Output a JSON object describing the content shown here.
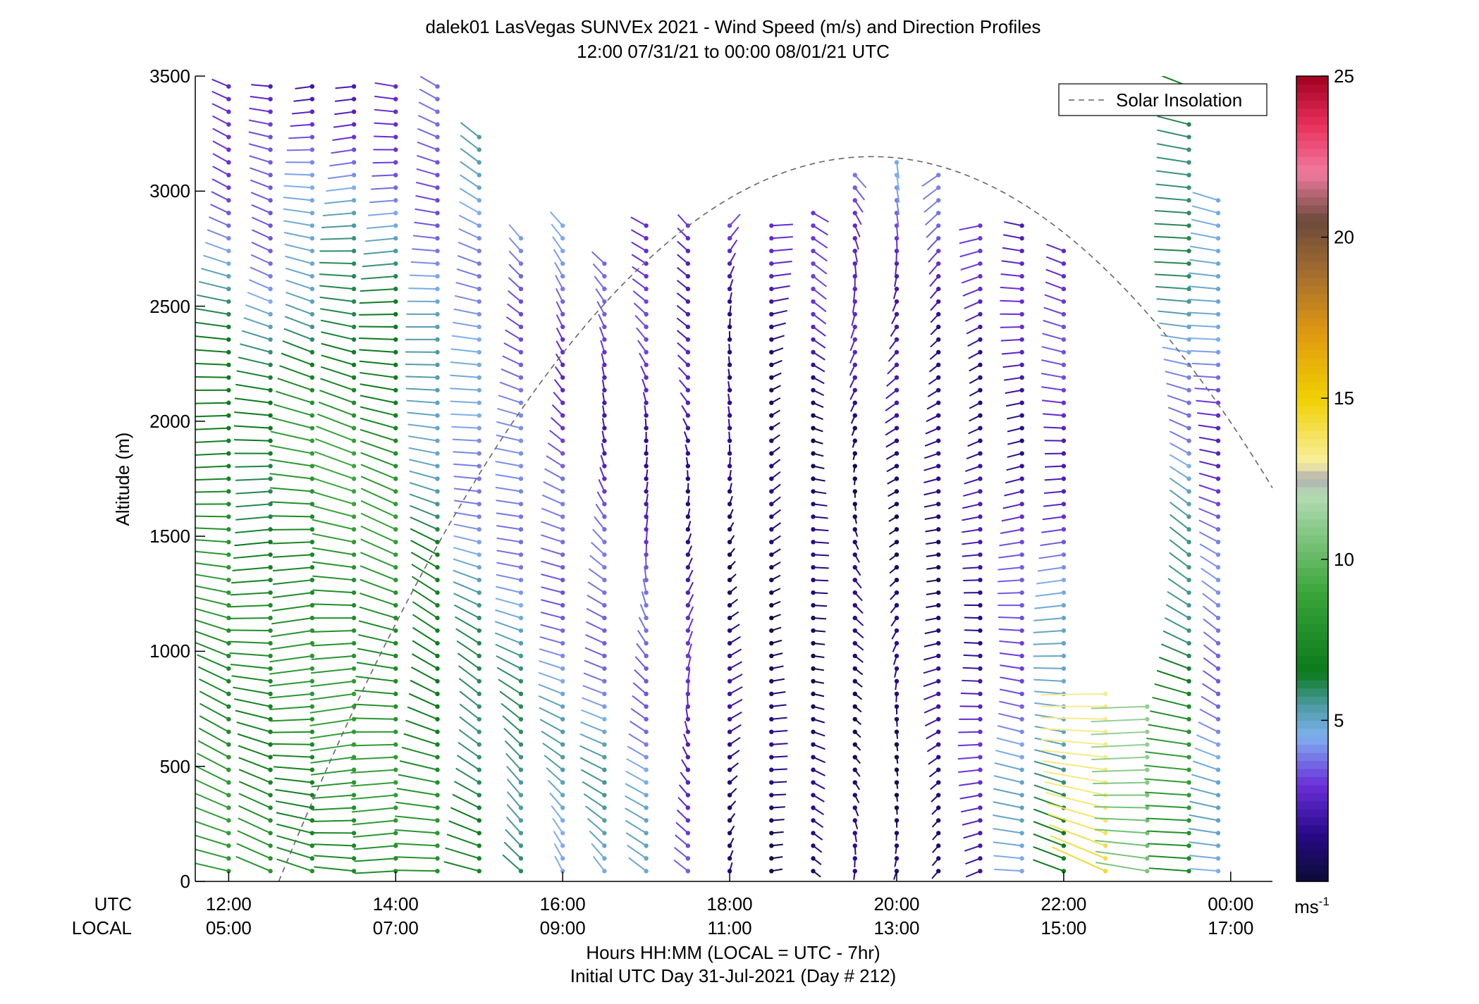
{
  "chart_data": {
    "type": "scatter",
    "plot_style": "wind barb profiles (stick vectors) colored by speed",
    "title": "dalek01 LasVegas SUNVEx 2021 - Wind Speed (m/s) and Direction Profiles",
    "subtitle": "12:00 07/31/21 to 00:00 08/01/21  UTC",
    "ylabel": "Altitude (m)",
    "ylim": [
      0,
      3500
    ],
    "yticks": [
      0,
      500,
      1000,
      1500,
      2000,
      2500,
      3000,
      3500
    ],
    "ytick_labels": [
      "0",
      "500",
      "1000",
      "1500",
      "2000",
      "2500",
      "3000",
      "3500"
    ],
    "xlim_utc_hours": [
      11.6,
      24.5
    ],
    "utc_row_label": "UTC",
    "local_row_label": "LOCAL",
    "xticks_utc": [
      "12:00",
      "14:00",
      "16:00",
      "18:00",
      "20:00",
      "22:00",
      "00:00"
    ],
    "xticks_local": [
      "05:00",
      "07:00",
      "09:00",
      "11:00",
      "13:00",
      "15:00",
      "17:00"
    ],
    "xtick_hours_utc": [
      12,
      14,
      16,
      18,
      20,
      22,
      24
    ],
    "xlabel": "Hours HH:MM  (LOCAL = UTC - 7hr)",
    "xlabel2": "Initial UTC Day 31-Jul-2021 (Day # 212)",
    "legend": {
      "label": "Solar Insolation",
      "placement": "top-right",
      "style": "dashed gray line"
    },
    "solar_insolation_curve": {
      "peak_hour_utc": 19.7,
      "peak_altitude": 3150,
      "zero_hour_utc": 12.6,
      "end_hour_utc": 24.5,
      "end_altitude": 1500
    },
    "colorbar": {
      "range": [
        0,
        25
      ],
      "ticks": [
        5,
        10,
        15,
        20,
        25
      ],
      "tick_labels": [
        "5",
        "10",
        "15",
        "20",
        "25"
      ],
      "unit_label": "ms",
      "unit_exponent": "-1",
      "stops": [
        {
          "value": 0,
          "color": "#0b0b35"
        },
        {
          "value": 1.5,
          "color": "#2a0a8a"
        },
        {
          "value": 3,
          "color": "#6a2fd8"
        },
        {
          "value": 4.5,
          "color": "#7fb0f0"
        },
        {
          "value": 5.5,
          "color": "#4a9aa0"
        },
        {
          "value": 6.5,
          "color": "#0a7a1a"
        },
        {
          "value": 9,
          "color": "#3aa63a"
        },
        {
          "value": 12,
          "color": "#b4dcb4"
        },
        {
          "value": 12.5,
          "color": "#b0b0b0"
        },
        {
          "value": 13,
          "color": "#f8f0a0"
        },
        {
          "value": 15,
          "color": "#f0d000"
        },
        {
          "value": 17,
          "color": "#e09a10"
        },
        {
          "value": 19,
          "color": "#a06a30"
        },
        {
          "value": 20.5,
          "color": "#6a4a3a"
        },
        {
          "value": 22,
          "color": "#f07aa0"
        },
        {
          "value": 23.5,
          "color": "#e8305a"
        },
        {
          "value": 25,
          "color": "#a00020"
        }
      ]
    },
    "profiles": [
      {
        "hour_utc": 12.0,
        "top_m": 3470,
        "low_speed_ms": 8.0,
        "mid_speed_ms": 7.5,
        "upper_speed_ms": 2.0,
        "direction_deg": 290
      },
      {
        "hour_utc": 12.5,
        "top_m": 3470,
        "low_speed_ms": 7.5,
        "mid_speed_ms": 6.5,
        "upper_speed_ms": 2.0,
        "direction_deg": 285
      },
      {
        "hour_utc": 13.0,
        "top_m": 3470,
        "low_speed_ms": 7.5,
        "mid_speed_ms": 8.0,
        "upper_speed_ms": 2.2,
        "direction_deg": 280
      },
      {
        "hour_utc": 13.5,
        "top_m": 3470,
        "low_speed_ms": 8.0,
        "mid_speed_ms": 8.5,
        "upper_speed_ms": 2.5,
        "direction_deg": 280
      },
      {
        "hour_utc": 14.0,
        "top_m": 3470,
        "low_speed_ms": 8.0,
        "mid_speed_ms": 8.0,
        "upper_speed_ms": 2.5,
        "direction_deg": 285
      },
      {
        "hour_utc": 14.5,
        "top_m": 3470,
        "low_speed_ms": 7.5,
        "mid_speed_ms": 5.5,
        "upper_speed_ms": 3.0,
        "direction_deg": 295
      },
      {
        "hour_utc": 15.0,
        "top_m": 3270,
        "low_speed_ms": 6.5,
        "mid_speed_ms": 4.0,
        "upper_speed_ms": 5.0,
        "direction_deg": 300
      },
      {
        "hour_utc": 15.5,
        "top_m": 2800,
        "low_speed_ms": 6.0,
        "mid_speed_ms": 3.5,
        "upper_speed_ms": 4.5,
        "direction_deg": 310
      },
      {
        "hour_utc": 16.0,
        "top_m": 2880,
        "low_speed_ms": 5.0,
        "mid_speed_ms": 3.0,
        "upper_speed_ms": 4.5,
        "direction_deg": 320
      },
      {
        "hour_utc": 16.5,
        "top_m": 2720,
        "low_speed_ms": 5.0,
        "mid_speed_ms": 2.5,
        "upper_speed_ms": 4.0,
        "direction_deg": 330
      },
      {
        "hour_utc": 17.0,
        "top_m": 2900,
        "low_speed_ms": 4.5,
        "mid_speed_ms": 2.0,
        "upper_speed_ms": 4.5,
        "direction_deg": 340
      },
      {
        "hour_utc": 17.5,
        "top_m": 2900,
        "low_speed_ms": 3.0,
        "mid_speed_ms": 1.5,
        "upper_speed_ms": 4.5,
        "direction_deg": 350
      },
      {
        "hour_utc": 18.0,
        "top_m": 2880,
        "low_speed_ms": 1.5,
        "mid_speed_ms": 1.0,
        "upper_speed_ms": 4.0,
        "direction_deg": 20
      },
      {
        "hour_utc": 18.5,
        "top_m": 2900,
        "low_speed_ms": 1.0,
        "mid_speed_ms": 0.8,
        "upper_speed_ms": 3.5,
        "direction_deg": 60
      },
      {
        "hour_utc": 19.0,
        "top_m": 2950,
        "low_speed_ms": 1.0,
        "mid_speed_ms": 0.8,
        "upper_speed_ms": 5.0,
        "direction_deg": 120
      },
      {
        "hour_utc": 19.5,
        "top_m": 3120,
        "low_speed_ms": 1.0,
        "mid_speed_ms": 1.0,
        "upper_speed_ms": 5.0,
        "direction_deg": 170
      },
      {
        "hour_utc": 20.0,
        "top_m": 3140,
        "low_speed_ms": 1.0,
        "mid_speed_ms": 1.0,
        "upper_speed_ms": 5.0,
        "direction_deg": 200
      },
      {
        "hour_utc": 20.5,
        "top_m": 3100,
        "low_speed_ms": 1.5,
        "mid_speed_ms": 1.0,
        "upper_speed_ms": 4.5,
        "direction_deg": 230
      },
      {
        "hour_utc": 21.0,
        "top_m": 2900,
        "low_speed_ms": 2.5,
        "mid_speed_ms": 1.5,
        "upper_speed_ms": 3.5,
        "direction_deg": 250
      },
      {
        "hour_utc": 21.5,
        "top_m": 2850,
        "low_speed_ms": 4.5,
        "mid_speed_ms": 2.0,
        "upper_speed_ms": 3.0,
        "direction_deg": 270
      },
      {
        "hour_utc": 22.0,
        "top_m": 2740,
        "low_speed_ms": 6.0,
        "mid_speed_ms": 2.5,
        "upper_speed_ms": 4.0,
        "direction_deg": 280
      },
      {
        "hour_utc": 22.5,
        "top_m": 840,
        "low_speed_ms": 14.0,
        "mid_speed_ms": 9.0,
        "upper_speed_ms": 9.0,
        "direction_deg": 290
      },
      {
        "hour_utc": 23.0,
        "top_m": 800,
        "low_speed_ms": 11.0,
        "mid_speed_ms": 9.0,
        "upper_speed_ms": 9.0,
        "direction_deg": 290
      },
      {
        "hour_utc": 23.5,
        "top_m": 3470,
        "low_speed_ms": 8.0,
        "mid_speed_ms": 4.0,
        "upper_speed_ms": 7.0,
        "direction_deg": 300
      },
      {
        "hour_utc": 23.85,
        "top_m": 2980,
        "low_speed_ms": 4.5,
        "mid_speed_ms": 3.0,
        "upper_speed_ms": 6.5,
        "direction_deg": 300
      }
    ]
  }
}
